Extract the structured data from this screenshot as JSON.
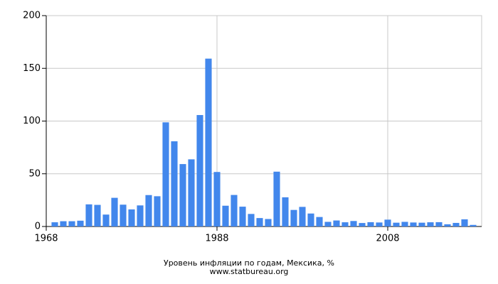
{
  "chart_data": {
    "type": "bar",
    "title": "Уровень инфляции по годам, Мексика, %",
    "subtitle": "www.statbureau.org",
    "x": [
      1969,
      1970,
      1971,
      1972,
      1973,
      1974,
      1975,
      1976,
      1977,
      1978,
      1979,
      1980,
      1981,
      1982,
      1983,
      1984,
      1985,
      1986,
      1987,
      1988,
      1989,
      1990,
      1991,
      1992,
      1993,
      1994,
      1995,
      1996,
      1997,
      1998,
      1999,
      2000,
      2001,
      2002,
      2003,
      2004,
      2005,
      2006,
      2007,
      2008,
      2009,
      2010,
      2011,
      2012,
      2013,
      2014,
      2015,
      2016,
      2017,
      2018
    ],
    "values": [
      4,
      5,
      5,
      5.5,
      21,
      20.5,
      11.3,
      27.2,
      20.7,
      16.2,
      20,
      29.8,
      28.7,
      98.8,
      80.8,
      59.2,
      63.7,
      105.7,
      159.2,
      51.7,
      19.7,
      29.9,
      18.8,
      11.9,
      8,
      7.1,
      52,
      27.7,
      15.7,
      18.6,
      12.3,
      9,
      4.4,
      5.7,
      4,
      5.2,
      3.3,
      4.1,
      3.8,
      6.5,
      3.6,
      4.4,
      3.8,
      3.6,
      4,
      4.1,
      2.1,
      3.4,
      6.8,
      1.5
    ],
    "color": "#4287ec",
    "xlim": [
      1968,
      2019
    ],
    "xticks": [
      1968,
      1988,
      2008
    ],
    "ylim": [
      0,
      200
    ],
    "yticks": [
      0,
      50,
      100,
      150,
      200
    ],
    "grid": true
  }
}
